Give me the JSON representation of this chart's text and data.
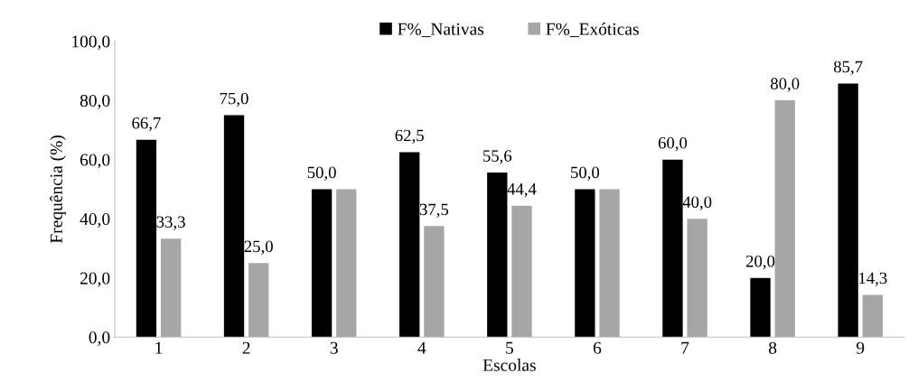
{
  "chart_data": {
    "type": "bar",
    "xlabel": "Escolas",
    "ylabel": "Frequência (%)",
    "categories": [
      "1",
      "2",
      "3",
      "4",
      "5",
      "6",
      "7",
      "8",
      "9"
    ],
    "series": [
      {
        "name": "F%_Nativas",
        "color": "#000000",
        "values": [
          66.7,
          75.0,
          50.0,
          62.5,
          55.6,
          50.0,
          60.0,
          20.0,
          85.7
        ],
        "value_labels": [
          "66,7",
          "75,0",
          "50,0",
          "62,5",
          "55,6",
          "50,0",
          "60,0",
          "20,0",
          "85,7"
        ]
      },
      {
        "name": "F%_Exóticas",
        "color": "#a6a6a6",
        "values": [
          33.3,
          25.0,
          50.0,
          37.5,
          44.4,
          50.0,
          40.0,
          80.0,
          14.3
        ],
        "value_labels": [
          "33,3",
          "25,0",
          null,
          "37,5",
          "44,4",
          null,
          "40,0",
          "80,0",
          "14,3"
        ]
      }
    ],
    "ylim": [
      0,
      100
    ],
    "yticks": [
      {
        "value": 0,
        "label": "0,0"
      },
      {
        "value": 20,
        "label": "20,0"
      },
      {
        "value": 40,
        "label": "40,0"
      },
      {
        "value": 60,
        "label": "60,0"
      },
      {
        "value": 80,
        "label": "80,0"
      },
      {
        "value": 100,
        "label": "100,0"
      }
    ],
    "grid": false,
    "legend": "top"
  }
}
